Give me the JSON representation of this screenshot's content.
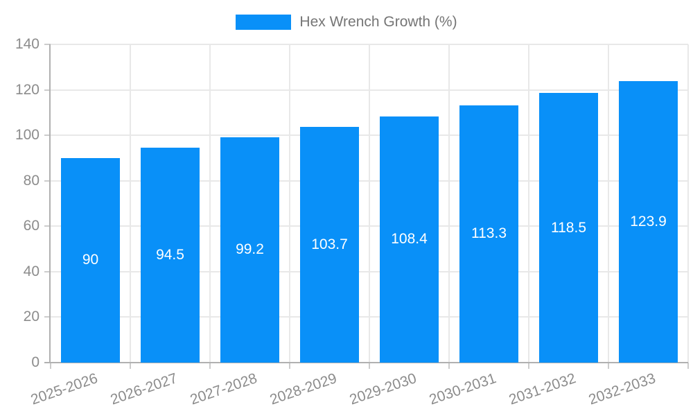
{
  "legend": {
    "label": "Hex Wrench Growth (%)"
  },
  "chart_data": {
    "type": "bar",
    "title": "",
    "categories": [
      "2025-2026",
      "2026-2027",
      "2027-2028",
      "2028-2029",
      "2029-2030",
      "2030-2031",
      "2031-2032",
      "2032-2033"
    ],
    "series": [
      {
        "name": "Hex Wrench Growth (%)",
        "values": [
          90,
          94.5,
          99.2,
          103.7,
          108.4,
          113.3,
          118.5,
          123.9
        ]
      }
    ],
    "value_labels": [
      "90",
      "94.5",
      "99.2",
      "103.7",
      "108.4",
      "113.3",
      "118.5",
      "123.9"
    ],
    "ytick_labels": [
      "0",
      "20",
      "40",
      "60",
      "80",
      "100",
      "120",
      "140"
    ],
    "ylim": [
      0,
      140
    ],
    "ytick_step": 20,
    "grid": true,
    "legend_position": "top",
    "x_label_rotation_deg": -19,
    "colors": {
      "bar": "#0990f8",
      "value_text": "#ffffff",
      "axis_text": "#8c8c8c",
      "legend_text": "#757575",
      "grid": "#e8e8e8",
      "tick": "#cccccc",
      "axis_line": "#b0b0b0",
      "background": "#ffffff"
    }
  }
}
